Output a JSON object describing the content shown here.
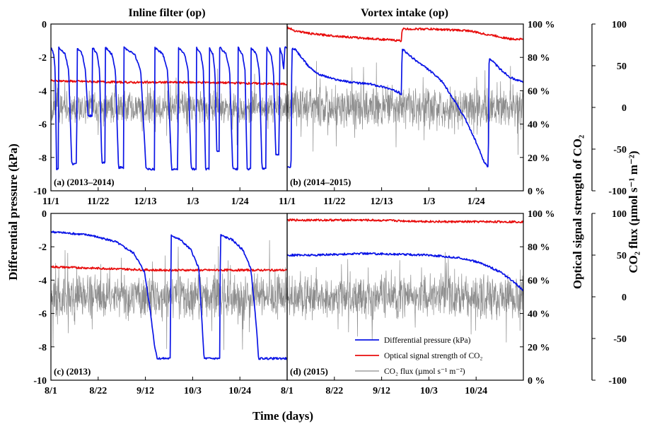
{
  "figure": {
    "col_titles": [
      "Inline filter (op)",
      "Vortex intake (op)"
    ],
    "xlabel": "Time (days)",
    "ylabel_left": "Differential pressure (kPa)",
    "ylabel_right1": "Optical signal strength of CO₂",
    "ylabel_right2": "CO₂ flux (µmol s⁻¹ m⁻²)",
    "left_ticks": [
      "0",
      "-2",
      "-4",
      "-6",
      "-8",
      "-10"
    ],
    "signal_ticks": [
      "100 %",
      "80 %",
      "60 %",
      "40 %",
      "20 %",
      "0 %"
    ],
    "flux_ticks": [
      "100",
      "50",
      "0",
      "-50",
      "-100"
    ],
    "colors": {
      "pressure": "#0a14e6",
      "signal": "#e80d0d",
      "flux": "#8c8c8c"
    }
  },
  "legend": {
    "pressure": "Differential pressure (kPa)",
    "signal": "Optical signal strength of CO₂",
    "flux": "CO₂ flux (µmol s⁻¹ m⁻²)"
  },
  "chart_data": [
    {
      "panel": "(a)",
      "title": "(2013–2014)",
      "column": "Inline filter (op)",
      "type": "line",
      "xlabel": "Time (days)",
      "ylabel": "Differential pressure (kPa)",
      "xticks": [
        "11/1",
        "11/22",
        "12/13",
        "1/3",
        "1/24"
      ],
      "xlim": [
        0,
        91
      ],
      "ylim": [
        -10,
        0
      ],
      "signal_ylim": [
        0,
        100
      ],
      "flux_ylim": [
        -100,
        100
      ],
      "series": [
        {
          "name": "Differential pressure (kPa)",
          "axis": "left",
          "pattern": "filter_cycles",
          "cycles": [
            [
              0,
              3,
              -8.7
            ],
            [
              3,
              10,
              -8.4
            ],
            [
              10,
              16,
              -5.5
            ],
            [
              16,
              21,
              -8.3
            ],
            [
              21,
              28,
              -8.6
            ],
            [
              28,
              40,
              -8.7
            ],
            [
              40,
              49,
              -8.7
            ],
            [
              49,
              56,
              -8.7
            ],
            [
              56,
              61,
              -8.7
            ],
            [
              61,
              65,
              -7.6
            ],
            [
              65,
              72,
              -8.7
            ],
            [
              72,
              77,
              -8.7
            ],
            [
              77,
              83,
              -8.7
            ],
            [
              83,
              88,
              -7.8
            ],
            [
              88,
              91,
              -1.4
            ]
          ]
        },
        {
          "name": "Optical signal strength of CO₂",
          "axis": "signal",
          "pattern": "trend",
          "values": [
            [
              0,
              66
            ],
            [
              30,
              65
            ],
            [
              60,
              65
            ],
            [
              91,
              64
            ]
          ]
        },
        {
          "name": "CO₂ flux (µmol s⁻¹ m⁻²)",
          "axis": "flux",
          "pattern": "noise",
          "amplitude": 22,
          "baseline": 0
        }
      ]
    },
    {
      "panel": "(b)",
      "title": "(2014–2015)",
      "column": "Vortex intake (op)",
      "type": "line",
      "xlabel": "Time (days)",
      "ylabel": "Optical signal strength of CO₂",
      "xticks": [
        "11/1",
        "11/22",
        "12/13",
        "1/3",
        "1/24"
      ],
      "xlim": [
        0,
        91
      ],
      "ylim": [
        -10,
        0
      ],
      "signal_ylim": [
        0,
        100
      ],
      "flux_ylim": [
        -100,
        100
      ],
      "series": [
        {
          "name": "Differential pressure (kPa)",
          "axis": "left",
          "pattern": "trend",
          "values": [
            [
              0,
              -8.6
            ],
            [
              1.5,
              -8.6
            ],
            [
              1.8,
              -1.5
            ],
            [
              3,
              -1.5
            ],
            [
              8,
              -2.5
            ],
            [
              12,
              -3.0
            ],
            [
              18,
              -3.3
            ],
            [
              25,
              -3.5
            ],
            [
              32,
              -3.6
            ],
            [
              38,
              -3.8
            ],
            [
              43,
              -4.1
            ],
            [
              44,
              -4.2
            ],
            [
              44.3,
              -1.5
            ],
            [
              48,
              -2.0
            ],
            [
              55,
              -2.8
            ],
            [
              60,
              -3.5
            ],
            [
              64,
              -4.5
            ],
            [
              68,
              -5.5
            ],
            [
              72,
              -6.8
            ],
            [
              76,
              -8.3
            ],
            [
              77.5,
              -8.6
            ],
            [
              77.8,
              -2.0
            ],
            [
              82,
              -2.7
            ],
            [
              86,
              -3.2
            ],
            [
              91,
              -3.5
            ]
          ]
        },
        {
          "name": "Optical signal strength of CO₂",
          "axis": "signal",
          "pattern": "trend",
          "values": [
            [
              0,
              98
            ],
            [
              3,
              96
            ],
            [
              10,
              94
            ],
            [
              25,
              92
            ],
            [
              44,
              90
            ],
            [
              44.3,
              97
            ],
            [
              55,
              97
            ],
            [
              70,
              96
            ],
            [
              76,
              94
            ],
            [
              80,
              93
            ],
            [
              86,
              91
            ],
            [
              91,
              91
            ]
          ]
        },
        {
          "name": "CO₂ flux (µmol s⁻¹ m⁻²)",
          "axis": "flux",
          "pattern": "noise",
          "amplitude": 28,
          "baseline": 0
        }
      ]
    },
    {
      "panel": "(c)",
      "title": "(2013)",
      "column": "Inline filter (op)",
      "type": "line",
      "xlabel": "Time (days)",
      "ylabel": "Differential pressure (kPa)",
      "xticks": [
        "8/1",
        "8/22",
        "9/12",
        "10/3",
        "10/24"
      ],
      "xlim": [
        0,
        91
      ],
      "ylim": [
        -10,
        0
      ],
      "signal_ylim": [
        0,
        100
      ],
      "flux_ylim": [
        -100,
        100
      ],
      "series": [
        {
          "name": "Differential pressure (kPa)",
          "axis": "left",
          "pattern": "trend",
          "values": [
            [
              0,
              -1.1
            ],
            [
              15,
              -1.3
            ],
            [
              25,
              -1.7
            ],
            [
              32,
              -2.4
            ],
            [
              36,
              -3.5
            ],
            [
              38,
              -5.5
            ],
            [
              40,
              -8.0
            ],
            [
              41,
              -8.7
            ],
            [
              46,
              -8.7
            ],
            [
              46.3,
              -1.3
            ],
            [
              50,
              -1.6
            ],
            [
              54,
              -2.2
            ],
            [
              57,
              -3.3
            ],
            [
              59,
              -8.7
            ],
            [
              65,
              -8.7
            ],
            [
              65.3,
              -1.3
            ],
            [
              70,
              -1.6
            ],
            [
              74,
              -2.2
            ],
            [
              77,
              -3.3
            ],
            [
              79,
              -6.5
            ],
            [
              80,
              -8.7
            ],
            [
              91,
              -8.7
            ]
          ]
        },
        {
          "name": "Optical signal strength of CO₂",
          "axis": "signal",
          "pattern": "trend",
          "values": [
            [
              0,
              68
            ],
            [
              20,
              67
            ],
            [
              40,
              66
            ],
            [
              60,
              66
            ],
            [
              91,
              66
            ]
          ]
        },
        {
          "name": "CO₂ flux (µmol s⁻¹ m⁻²)",
          "axis": "flux",
          "pattern": "noise",
          "amplitude": 30,
          "baseline": 0
        }
      ]
    },
    {
      "panel": "(d)",
      "title": "(2015)",
      "column": "Vortex intake (op)",
      "type": "line",
      "xlabel": "Time (days)",
      "ylabel": "Optical signal strength of CO₂",
      "xticks": [
        "8/1",
        "8/22",
        "9/12",
        "10/3",
        "10/24"
      ],
      "xlim": [
        0,
        91
      ],
      "ylim": [
        -10,
        0
      ],
      "signal_ylim": [
        0,
        100
      ],
      "flux_ylim": [
        -100,
        100
      ],
      "series": [
        {
          "name": "Differential pressure (kPa)",
          "axis": "left",
          "pattern": "trend",
          "values": [
            [
              0,
              -2.5
            ],
            [
              10,
              -2.5
            ],
            [
              30,
              -2.4
            ],
            [
              55,
              -2.5
            ],
            [
              68,
              -2.7
            ],
            [
              75,
              -3.0
            ],
            [
              82,
              -3.5
            ],
            [
              88,
              -4.2
            ],
            [
              91,
              -4.6
            ]
          ]
        },
        {
          "name": "Optical signal strength of CO₂",
          "axis": "signal",
          "pattern": "trend",
          "values": [
            [
              0,
              96
            ],
            [
              30,
              96
            ],
            [
              60,
              95
            ],
            [
              91,
              95
            ]
          ]
        },
        {
          "name": "CO₂ flux (µmol s⁻¹ m⁻²)",
          "axis": "flux",
          "pattern": "noise",
          "amplitude": 30,
          "baseline": 0
        }
      ]
    }
  ]
}
